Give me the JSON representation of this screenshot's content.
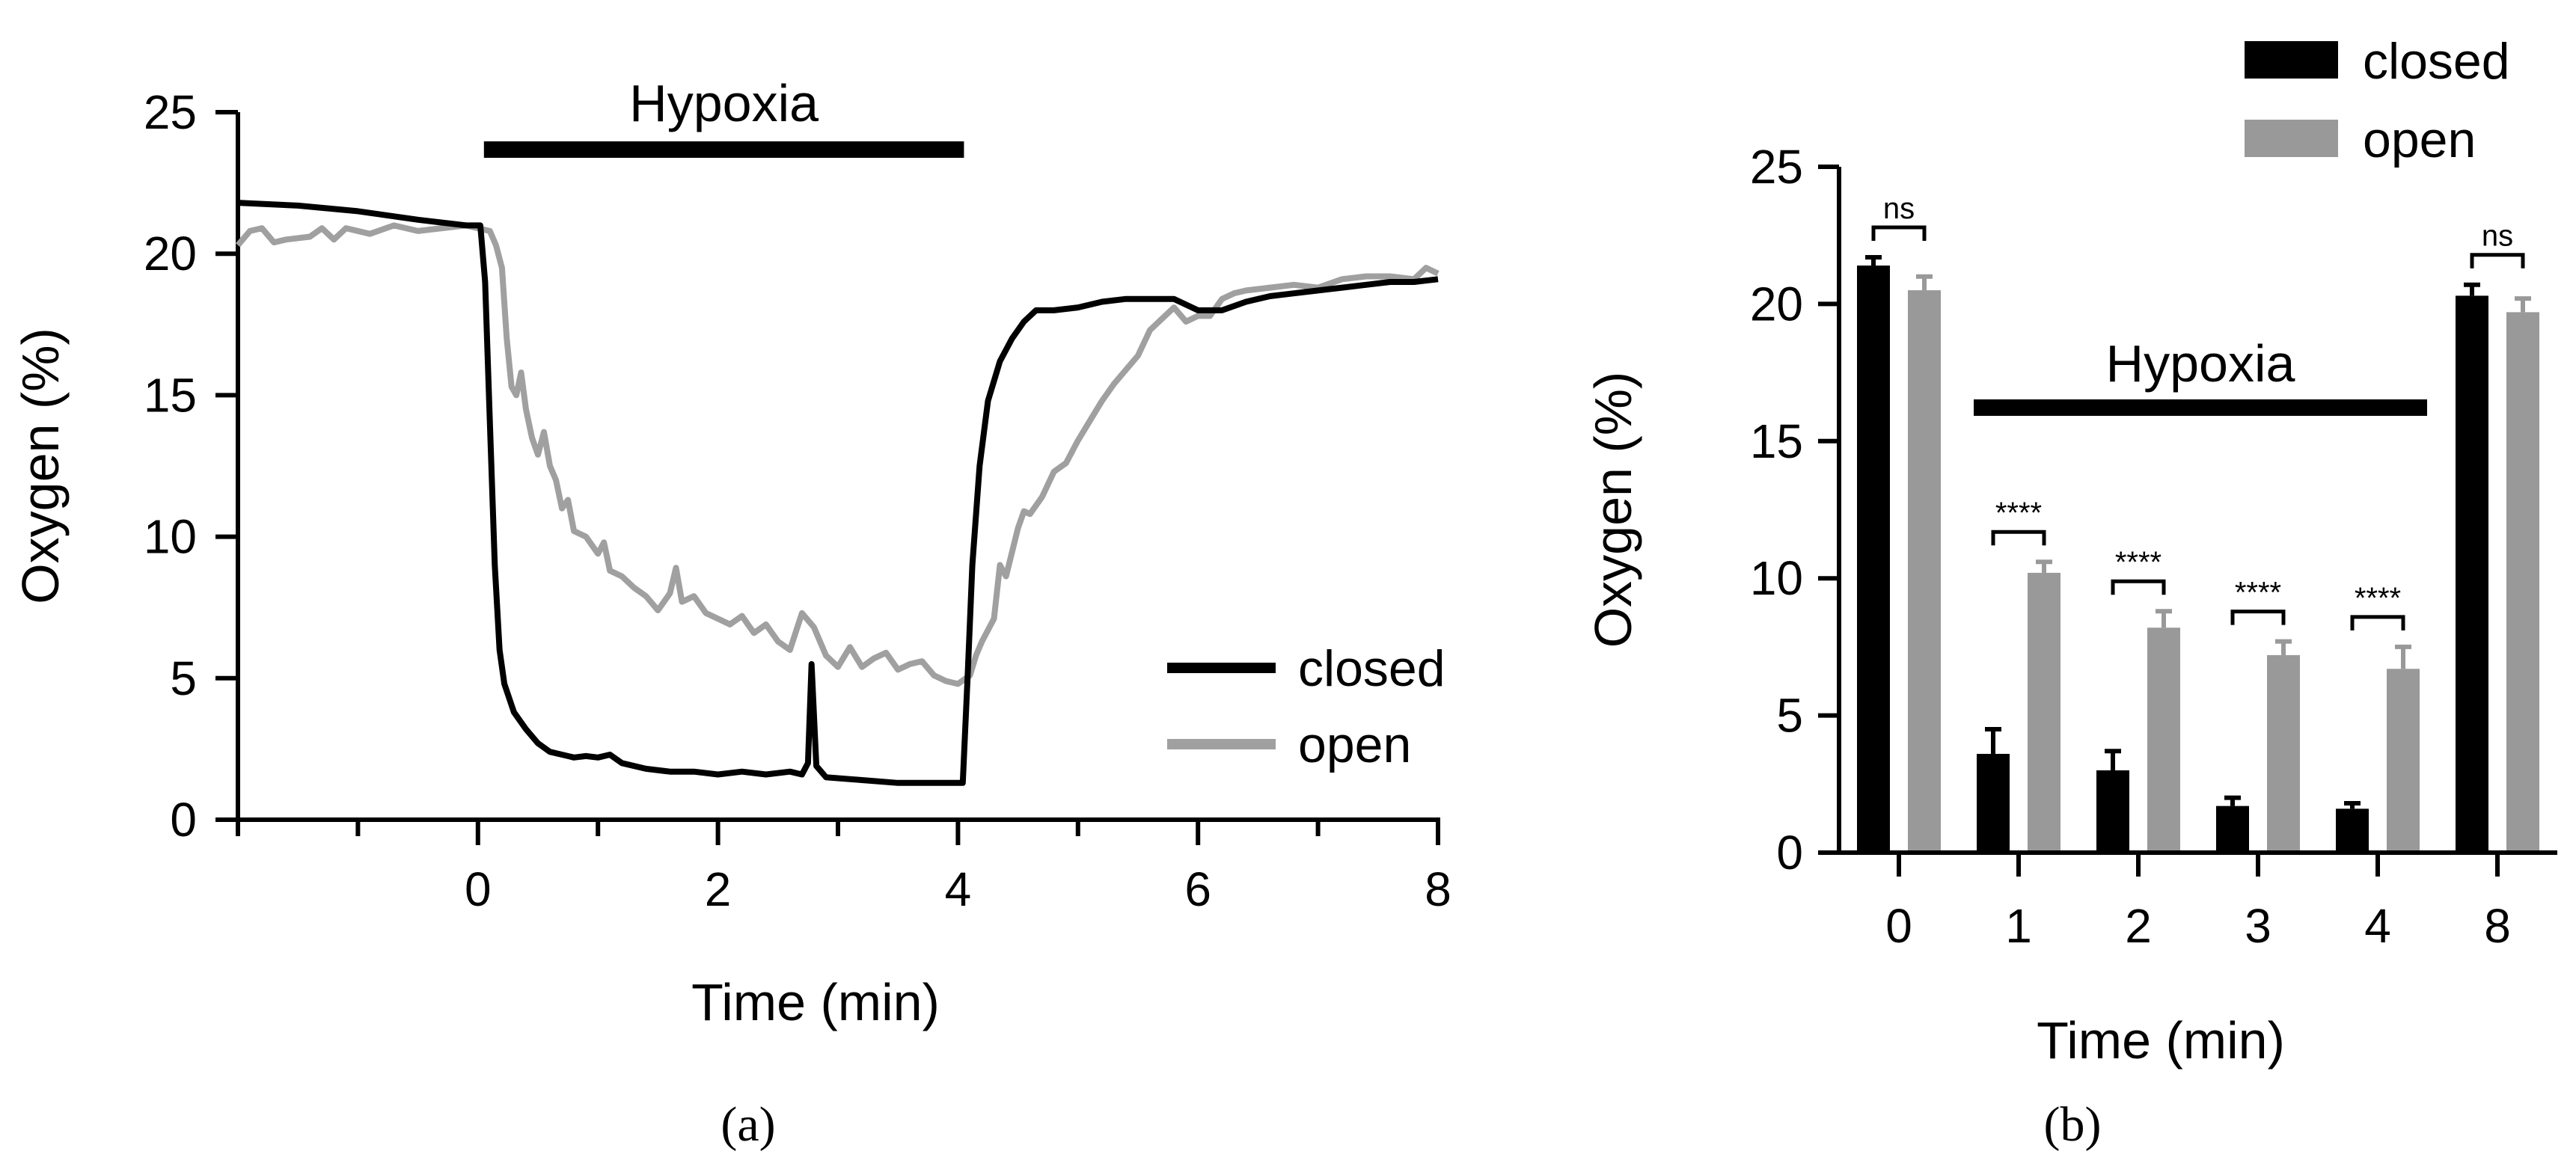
{
  "chart_data": [
    {
      "panel": "(a)",
      "type": "line",
      "xlabel": "Time (min)",
      "ylabel": "Oxygen (%)",
      "xlim": [
        -2,
        8
      ],
      "ylim": [
        0,
        25
      ],
      "xticks": [
        0,
        2,
        4,
        6,
        8
      ],
      "yticks": [
        0,
        5,
        10,
        15,
        20,
        25
      ],
      "grid": false,
      "legend_position": "bottom-right",
      "annotation": {
        "text": "Hypoxia",
        "x_start": 0.05,
        "x_end": 4.05
      },
      "series": [
        {
          "name": "closed",
          "color": "#000000",
          "points": [
            [
              -2,
              21.8
            ],
            [
              -1.5,
              21.7
            ],
            [
              -1,
              21.5
            ],
            [
              -0.5,
              21.2
            ],
            [
              -0.1,
              21.0
            ],
            [
              0.02,
              21.0
            ],
            [
              0.06,
              19
            ],
            [
              0.1,
              14
            ],
            [
              0.14,
              9
            ],
            [
              0.18,
              6
            ],
            [
              0.22,
              4.8
            ],
            [
              0.3,
              3.8
            ],
            [
              0.4,
              3.2
            ],
            [
              0.5,
              2.7
            ],
            [
              0.6,
              2.4
            ],
            [
              0.7,
              2.3
            ],
            [
              0.8,
              2.2
            ],
            [
              0.9,
              2.25
            ],
            [
              1.0,
              2.2
            ],
            [
              1.1,
              2.3
            ],
            [
              1.2,
              2.0
            ],
            [
              1.4,
              1.8
            ],
            [
              1.6,
              1.7
            ],
            [
              1.8,
              1.7
            ],
            [
              2.0,
              1.6
            ],
            [
              2.2,
              1.7
            ],
            [
              2.4,
              1.6
            ],
            [
              2.6,
              1.7
            ],
            [
              2.7,
              1.6
            ],
            [
              2.75,
              2.0
            ],
            [
              2.78,
              5.5
            ],
            [
              2.82,
              1.9
            ],
            [
              2.9,
              1.5
            ],
            [
              3.2,
              1.4
            ],
            [
              3.5,
              1.3
            ],
            [
              3.8,
              1.3
            ],
            [
              4.0,
              1.3
            ],
            [
              4.04,
              1.3
            ],
            [
              4.08,
              5
            ],
            [
              4.12,
              9
            ],
            [
              4.18,
              12.5
            ],
            [
              4.25,
              14.8
            ],
            [
              4.35,
              16.2
            ],
            [
              4.45,
              17.0
            ],
            [
              4.55,
              17.6
            ],
            [
              4.65,
              18.0
            ],
            [
              4.8,
              18.0
            ],
            [
              5.0,
              18.1
            ],
            [
              5.2,
              18.3
            ],
            [
              5.4,
              18.4
            ],
            [
              5.6,
              18.4
            ],
            [
              5.8,
              18.4
            ],
            [
              6.0,
              18.0
            ],
            [
              6.2,
              18.0
            ],
            [
              6.4,
              18.3
            ],
            [
              6.6,
              18.5
            ],
            [
              6.8,
              18.6
            ],
            [
              7.0,
              18.7
            ],
            [
              7.2,
              18.8
            ],
            [
              7.4,
              18.9
            ],
            [
              7.6,
              19.0
            ],
            [
              7.8,
              19.0
            ],
            [
              8.0,
              19.1
            ]
          ]
        },
        {
          "name": "open",
          "color": "#a0a0a0",
          "points": [
            [
              -2,
              20.3
            ],
            [
              -1.9,
              20.8
            ],
            [
              -1.8,
              20.9
            ],
            [
              -1.7,
              20.4
            ],
            [
              -1.6,
              20.5
            ],
            [
              -1.4,
              20.6
            ],
            [
              -1.3,
              20.9
            ],
            [
              -1.2,
              20.5
            ],
            [
              -1.1,
              20.9
            ],
            [
              -0.9,
              20.7
            ],
            [
              -0.7,
              21.0
            ],
            [
              -0.5,
              20.8
            ],
            [
              -0.3,
              20.9
            ],
            [
              -0.1,
              21.0
            ],
            [
              0.1,
              20.8
            ],
            [
              0.15,
              20.3
            ],
            [
              0.2,
              19.5
            ],
            [
              0.24,
              17.0
            ],
            [
              0.28,
              15.3
            ],
            [
              0.32,
              15.0
            ],
            [
              0.36,
              15.8
            ],
            [
              0.4,
              14.5
            ],
            [
              0.45,
              13.5
            ],
            [
              0.5,
              12.9
            ],
            [
              0.55,
              13.7
            ],
            [
              0.6,
              12.5
            ],
            [
              0.65,
              12.0
            ],
            [
              0.7,
              11.0
            ],
            [
              0.75,
              11.3
            ],
            [
              0.8,
              10.2
            ],
            [
              0.9,
              10.0
            ],
            [
              1.0,
              9.4
            ],
            [
              1.05,
              9.8
            ],
            [
              1.1,
              8.8
            ],
            [
              1.2,
              8.6
            ],
            [
              1.3,
              8.2
            ],
            [
              1.4,
              7.9
            ],
            [
              1.5,
              7.4
            ],
            [
              1.6,
              8.0
            ],
            [
              1.65,
              8.9
            ],
            [
              1.7,
              7.7
            ],
            [
              1.8,
              7.9
            ],
            [
              1.9,
              7.3
            ],
            [
              2.0,
              7.1
            ],
            [
              2.1,
              6.9
            ],
            [
              2.2,
              7.2
            ],
            [
              2.3,
              6.6
            ],
            [
              2.4,
              6.9
            ],
            [
              2.5,
              6.3
            ],
            [
              2.6,
              6.0
            ],
            [
              2.7,
              7.3
            ],
            [
              2.8,
              6.8
            ],
            [
              2.9,
              5.8
            ],
            [
              3.0,
              5.4
            ],
            [
              3.1,
              6.1
            ],
            [
              3.2,
              5.4
            ],
            [
              3.3,
              5.7
            ],
            [
              3.4,
              5.9
            ],
            [
              3.5,
              5.3
            ],
            [
              3.6,
              5.5
            ],
            [
              3.7,
              5.6
            ],
            [
              3.8,
              5.1
            ],
            [
              3.9,
              4.9
            ],
            [
              4.0,
              4.8
            ],
            [
              4.1,
              5.1
            ],
            [
              4.15,
              5.8
            ],
            [
              4.2,
              6.3
            ],
            [
              4.3,
              7.1
            ],
            [
              4.35,
              9.0
            ],
            [
              4.4,
              8.6
            ],
            [
              4.5,
              10.3
            ],
            [
              4.55,
              10.9
            ],
            [
              4.6,
              10.8
            ],
            [
              4.7,
              11.4
            ],
            [
              4.8,
              12.3
            ],
            [
              4.9,
              12.6
            ],
            [
              5.0,
              13.4
            ],
            [
              5.1,
              14.1
            ],
            [
              5.2,
              14.8
            ],
            [
              5.3,
              15.4
            ],
            [
              5.4,
              15.9
            ],
            [
              5.5,
              16.4
            ],
            [
              5.6,
              17.3
            ],
            [
              5.7,
              17.7
            ],
            [
              5.8,
              18.1
            ],
            [
              5.9,
              17.6
            ],
            [
              6.0,
              17.8
            ],
            [
              6.1,
              17.8
            ],
            [
              6.2,
              18.4
            ],
            [
              6.3,
              18.6
            ],
            [
              6.4,
              18.7
            ],
            [
              6.6,
              18.8
            ],
            [
              6.8,
              18.9
            ],
            [
              7.0,
              18.8
            ],
            [
              7.2,
              19.1
            ],
            [
              7.4,
              19.2
            ],
            [
              7.6,
              19.2
            ],
            [
              7.8,
              19.1
            ],
            [
              7.9,
              19.5
            ],
            [
              8.0,
              19.3
            ]
          ]
        }
      ]
    },
    {
      "panel": "(b)",
      "type": "bar",
      "categories": [
        "0",
        "1",
        "2",
        "3",
        "4",
        "8"
      ],
      "xlabel": "Time (min)",
      "ylabel": "Oxygen (%)",
      "ylim": [
        0,
        25
      ],
      "yticks": [
        0,
        5,
        10,
        15,
        20,
        25
      ],
      "grid": false,
      "legend_position": "top-right",
      "annotation": {
        "text": "Hypoxia",
        "from_category": "1",
        "to_category": "4"
      },
      "significance": [
        "ns",
        "****",
        "****",
        "****",
        "****",
        "ns"
      ],
      "series": [
        {
          "name": "closed",
          "color": "#000000",
          "values": [
            21.4,
            3.6,
            3.0,
            1.7,
            1.6,
            20.3
          ],
          "errors": [
            0.3,
            0.9,
            0.7,
            0.3,
            0.2,
            0.4
          ]
        },
        {
          "name": "open",
          "color": "#999999",
          "values": [
            20.5,
            10.2,
            8.2,
            7.2,
            6.7,
            19.7
          ],
          "errors": [
            0.5,
            0.4,
            0.6,
            0.5,
            0.8,
            0.5
          ]
        }
      ]
    }
  ],
  "captions": {
    "a": "(a)",
    "b": "(b)"
  }
}
